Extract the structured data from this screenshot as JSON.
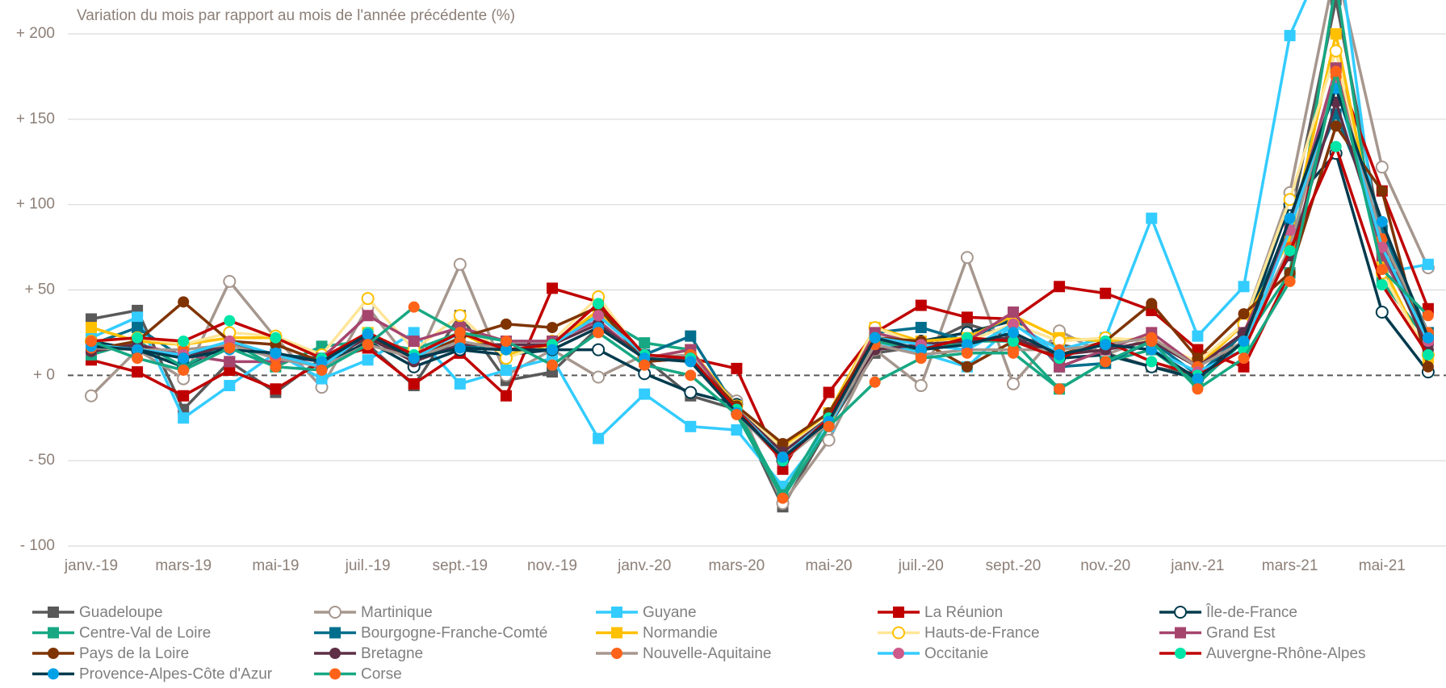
{
  "chart_data": {
    "type": "line",
    "title": "Variation du mois par rapport au mois de l'année précédente (%)",
    "categories": [
      "janv.-19",
      null,
      "mars-19",
      null,
      "mai-19",
      null,
      "juil.-19",
      null,
      "sept.-19",
      null,
      "nov.-19",
      null,
      "janv.-20",
      null,
      "mars-20",
      null,
      "mai-20",
      null,
      "juil.-20",
      null,
      "sept.-20",
      null,
      "nov.-20",
      null,
      "janv.-21",
      null,
      "mars-21",
      null,
      "mai-21",
      null
    ],
    "ylim": [
      -100,
      200
    ],
    "yticks": [
      {
        "value": -100,
        "label": "- 100"
      },
      {
        "value": -50,
        "label": "- 50"
      },
      {
        "value": 0,
        "label": "+ 0"
      },
      {
        "value": 50,
        "label": "+ 50"
      },
      {
        "value": 100,
        "label": "+ 100"
      },
      {
        "value": 150,
        "label": "+ 150"
      },
      {
        "value": 200,
        "label": "+ 200"
      }
    ],
    "grid": true,
    "zero_line": "dashed",
    "legend": "bottom",
    "series": [
      {
        "name": "Guadeloupe",
        "color": "#595959",
        "marker": "square",
        "marker_color": "#595959",
        "values": [
          33,
          38,
          -20,
          8,
          -10,
          10,
          18,
          -6,
          35,
          -3,
          2,
          28,
          10,
          -12,
          -20,
          -77,
          -30,
          13,
          17,
          30,
          22,
          18,
          13,
          5,
          0,
          20,
          90,
          220,
          80,
          20
        ]
      },
      {
        "name": "Martinique",
        "color": "#a6978e",
        "marker": "hollow-circle",
        "marker_color": "#a6978e",
        "values": [
          -12,
          15,
          -2,
          55,
          22,
          -7,
          40,
          5,
          65,
          0,
          15,
          -1,
          12,
          10,
          -15,
          -75,
          -38,
          15,
          -6,
          69,
          -5,
          26,
          12,
          22,
          5,
          30,
          107,
          240,
          122,
          63
        ]
      },
      {
        "name": "Guyane",
        "color": "#33ccff",
        "marker": "square",
        "marker_color": "#33ccff",
        "values": [
          22,
          34,
          -25,
          -6,
          13,
          -2,
          9,
          25,
          -5,
          3,
          10,
          -37,
          -11,
          -30,
          -32,
          -65,
          -30,
          20,
          13,
          5,
          30,
          15,
          22,
          92,
          23,
          52,
          199,
          260,
          60,
          65
        ]
      },
      {
        "name": "La Réunion",
        "color": "#c00000",
        "marker": "square",
        "marker_color": "#c00000",
        "values": [
          9,
          2,
          -12,
          3,
          -8,
          8,
          16,
          -5,
          13,
          -12,
          51,
          43,
          8,
          10,
          4,
          -55,
          -10,
          25,
          41,
          34,
          33,
          52,
          48,
          38,
          15,
          5,
          60,
          180,
          108,
          39
        ]
      },
      {
        "name": "Île-de-France",
        "color": "#003a4d",
        "marker": "hollow-circle",
        "marker_color": "#003a4d",
        "values": [
          20,
          15,
          5,
          18,
          12,
          5,
          20,
          5,
          15,
          12,
          15,
          15,
          1,
          -10,
          -17,
          -50,
          -25,
          20,
          20,
          25,
          32,
          10,
          12,
          5,
          -2,
          25,
          100,
          130,
          37,
          2
        ]
      },
      {
        "name": "Centre-Val de Loire",
        "color": "#17a883",
        "marker": "square",
        "marker_color": "#17a883",
        "values": [
          12,
          20,
          5,
          20,
          5,
          17,
          20,
          15,
          25,
          20,
          20,
          35,
          19,
          15,
          -20,
          -70,
          -25,
          20,
          15,
          20,
          20,
          -8,
          8,
          15,
          -5,
          20,
          60,
          230,
          55,
          20
        ]
      },
      {
        "name": "Bourgogne-Franche-Comté",
        "color": "#006e8c",
        "marker": "square",
        "marker_color": "#006e8c",
        "values": [
          18,
          28,
          10,
          20,
          12,
          10,
          24,
          12,
          17,
          15,
          18,
          35,
          12,
          23,
          -20,
          -45,
          -25,
          25,
          28,
          20,
          35,
          5,
          7,
          20,
          0,
          25,
          90,
          153,
          85,
          25
        ]
      },
      {
        "name": "Normandie",
        "color": "#ffc000",
        "marker": "square",
        "marker_color": "#ffc000",
        "values": [
          28,
          20,
          18,
          22,
          22,
          10,
          25,
          12,
          25,
          12,
          18,
          38,
          10,
          15,
          -18,
          -42,
          -22,
          28,
          20,
          22,
          35,
          22,
          20,
          22,
          5,
          30,
          80,
          200,
          65,
          10
        ]
      },
      {
        "name": "Hauts-de-France",
        "color": "#ffe699",
        "marker": "hollow-circle",
        "marker_color": "#ffc000",
        "values": [
          20,
          22,
          18,
          25,
          23,
          12,
          45,
          15,
          35,
          10,
          20,
          46,
          10,
          12,
          -18,
          -43,
          -25,
          28,
          18,
          20,
          30,
          20,
          22,
          20,
          8,
          30,
          103,
          190,
          60,
          12
        ]
      },
      {
        "name": "Grand Est",
        "color": "#a5456e",
        "marker": "square",
        "marker_color": "#a5456e",
        "values": [
          15,
          18,
          12,
          8,
          8,
          10,
          35,
          20,
          28,
          20,
          20,
          32,
          10,
          15,
          -20,
          -50,
          -25,
          25,
          18,
          20,
          37,
          5,
          15,
          25,
          5,
          25,
          85,
          180,
          70,
          20
        ]
      },
      {
        "name": "Pays de la Loire",
        "color": "#7f3300",
        "marker": "circle",
        "marker_color": "#7f3300",
        "values": [
          15,
          20,
          43,
          20,
          18,
          8,
          22,
          10,
          22,
          30,
          28,
          40,
          8,
          10,
          -18,
          -40,
          -22,
          22,
          20,
          5,
          20,
          12,
          20,
          42,
          10,
          36,
          60,
          146,
          108,
          5
        ]
      },
      {
        "name": "Bretagne",
        "color": "#5e2f46",
        "marker": "circle",
        "marker_color": "#5e2f46",
        "values": [
          14,
          18,
          10,
          18,
          12,
          8,
          22,
          8,
          18,
          18,
          18,
          30,
          10,
          10,
          -20,
          -45,
          -25,
          15,
          18,
          20,
          22,
          12,
          15,
          20,
          5,
          25,
          70,
          160,
          75,
          15
        ]
      },
      {
        "name": "Nouvelle-Aquitaine",
        "color": "#a6978e",
        "marker": "circle",
        "marker_color": "#ff6319",
        "values": [
          16,
          15,
          15,
          18,
          10,
          5,
          18,
          10,
          20,
          15,
          15,
          28,
          10,
          12,
          -22,
          -50,
          -28,
          18,
          12,
          15,
          15,
          15,
          18,
          22,
          5,
          20,
          75,
          175,
          80,
          25
        ]
      },
      {
        "name": "Occitanie",
        "color": "#33ccff",
        "marker": "circle",
        "marker_color": "#cc5a8a",
        "values": [
          18,
          15,
          12,
          20,
          12,
          5,
          25,
          10,
          25,
          15,
          18,
          35,
          12,
          10,
          -20,
          -48,
          -25,
          22,
          18,
          15,
          30,
          12,
          18,
          15,
          2,
          15,
          85,
          170,
          75,
          20
        ]
      },
      {
        "name": "Auvergne-Rhône-Alpes",
        "color": "#c00000",
        "marker": "circle",
        "marker_color": "#00e6a8",
        "values": [
          20,
          22,
          20,
          32,
          22,
          10,
          25,
          12,
          25,
          15,
          18,
          42,
          12,
          10,
          -20,
          -50,
          -25,
          22,
          15,
          22,
          20,
          10,
          20,
          8,
          0,
          15,
          73,
          134,
          53,
          12
        ]
      },
      {
        "name": "Provence-Alpes-Côte d'Azur",
        "color": "#003a4d",
        "marker": "circle",
        "marker_color": "#00a1e6",
        "values": [
          17,
          15,
          10,
          15,
          13,
          8,
          24,
          10,
          16,
          15,
          15,
          28,
          10,
          8,
          -22,
          -48,
          -27,
          22,
          15,
          18,
          25,
          12,
          18,
          15,
          -2,
          20,
          92,
          168,
          90,
          22
        ]
      },
      {
        "name": "Corse",
        "color": "#17a883",
        "marker": "circle",
        "marker_color": "#ff6319",
        "values": [
          20,
          10,
          3,
          16,
          5,
          3,
          18,
          40,
          25,
          20,
          6,
          25,
          6,
          0,
          -23,
          -72,
          -30,
          -4,
          10,
          13,
          13,
          -8,
          8,
          20,
          -8,
          10,
          55,
          178,
          62,
          35
        ]
      }
    ]
  }
}
